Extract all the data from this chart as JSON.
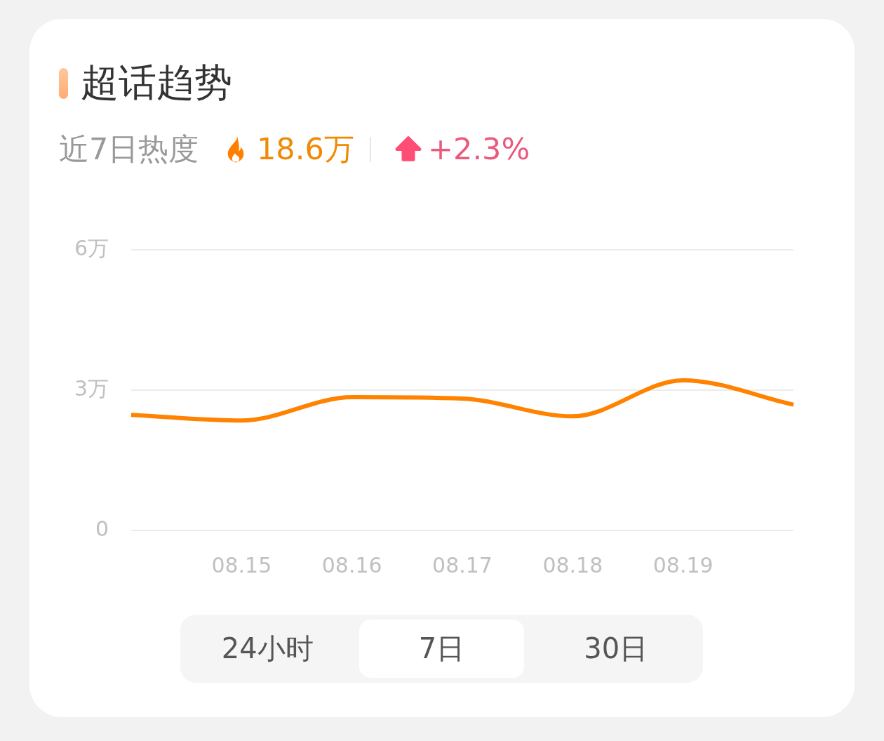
{
  "chart_data": {
    "type": "line",
    "title": "超话趋势",
    "subtitle": "近7日热度",
    "annotations": [
      "18.6万",
      "+2.3%",
      "24小时",
      "7日",
      "30日"
    ],
    "categories": [
      null,
      "08.15",
      "08.16",
      "08.17",
      "08.18",
      "08.19",
      null
    ],
    "values": [
      2.47,
      2.35,
      2.85,
      2.82,
      2.44,
      3.21,
      2.69
    ],
    "color": "#ff8200",
    "ylim": [
      0,
      6
    ],
    "yticks": [
      0,
      {
        "value": 3,
        "label": "3万"
      },
      {
        "value": 6,
        "label": "6万"
      }
    ],
    "grid": "y",
    "marker": "none"
  }
}
